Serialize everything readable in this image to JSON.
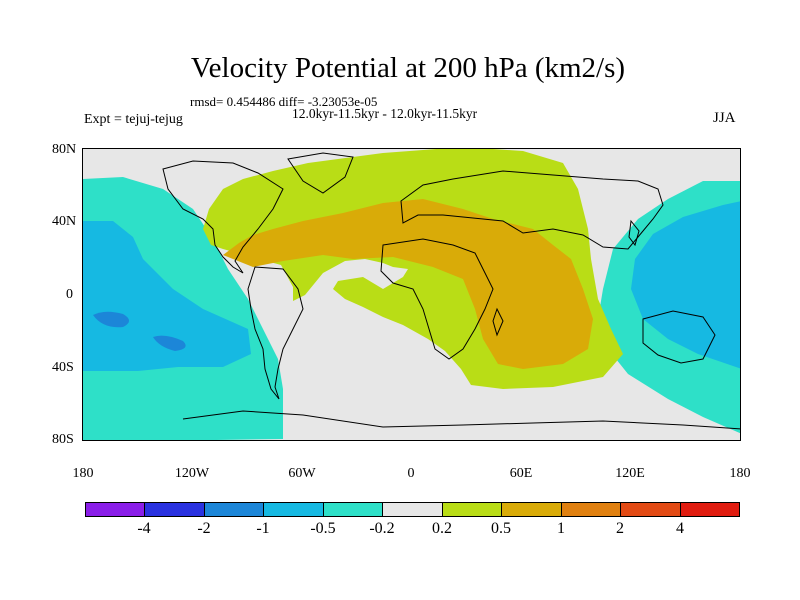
{
  "header": {
    "title": "Velocity Potential at 200 hPa (km2/s)",
    "stats": "rmsd= 0.454486 diff= -3.23053e-05",
    "period": "12.0kyr-11.5kyr - 12.0kyr-11.5kyr",
    "experiment": "Expt = tejuj-tejug",
    "season": "JJA"
  },
  "map": {
    "lat_labels": [
      "80N",
      "40N",
      "0",
      "40S",
      "80S"
    ],
    "lon_labels": [
      "180",
      "120W",
      "60W",
      "0",
      "60E",
      "120E",
      "180"
    ],
    "fill_colors": {
      "background": "#e7e7e7",
      "lvl_n05": "#2ee0c8",
      "lvl_n1": "#16b9e2",
      "lvl_n2": "#1c86d8",
      "lvl_p02": "#b9dd16",
      "lvl_p05": "#d9ab08"
    }
  },
  "colorbar": {
    "colors": [
      "#8a1ee8",
      "#2a32e0",
      "#1c86d8",
      "#16b9e2",
      "#2ee0c8",
      "#e7e7e7",
      "#b9dd16",
      "#d9ab08",
      "#e08010",
      "#e24a14",
      "#e01c10"
    ],
    "labels": [
      "-4",
      "-2",
      "-1",
      "-0.5",
      "-0.2",
      "0.2",
      "0.5",
      "1",
      "2",
      "4"
    ]
  }
}
